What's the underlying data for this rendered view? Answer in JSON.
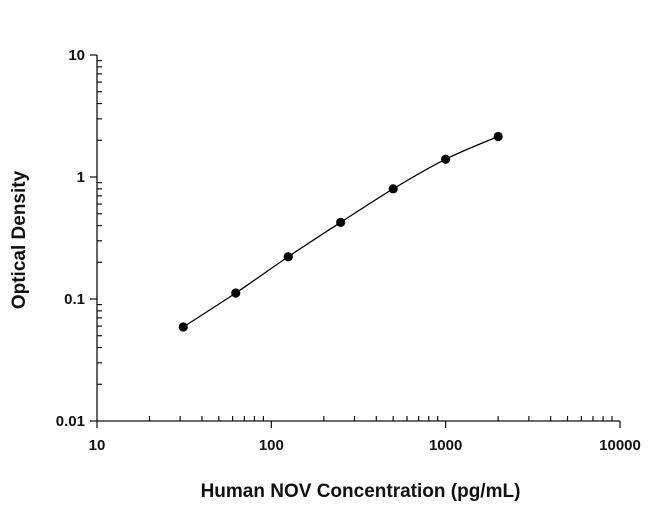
{
  "chart_data": {
    "type": "scatter",
    "xlabel": "Human NOV Concentration (pg/mL)",
    "ylabel": "Optical Density",
    "xscale": "log",
    "yscale": "log",
    "xlim": [
      10,
      10000
    ],
    "ylim": [
      0.01,
      10
    ],
    "x_tick_labels": [
      "10",
      "100",
      "1000",
      "10000"
    ],
    "y_tick_labels": [
      "0.01",
      "0.1",
      "1",
      "10"
    ],
    "grid": false,
    "legend": "none",
    "fit_line": "smooth curve through points",
    "series": [
      {
        "color": "#000000",
        "points": [
          {
            "x": 31.25,
            "y": 0.059
          },
          {
            "x": 62.5,
            "y": 0.112
          },
          {
            "x": 125,
            "y": 0.222
          },
          {
            "x": 250,
            "y": 0.425
          },
          {
            "x": 500,
            "y": 0.8
          },
          {
            "x": 1000,
            "y": 1.4
          },
          {
            "x": 2000,
            "y": 2.15
          }
        ]
      }
    ]
  }
}
